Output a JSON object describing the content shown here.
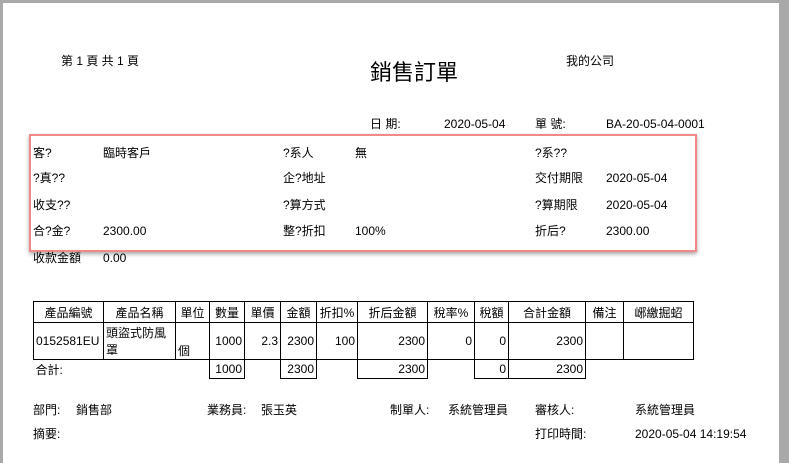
{
  "header": {
    "page_label": "第 1    頁 共 1    頁",
    "title": "銷售訂單",
    "company": "我的公司",
    "date_label": "日    期:",
    "date": "2020-05-04",
    "no_label": "單    號:",
    "no": "BA-20-05-04-0001"
  },
  "fields": [
    {
      "label": "客?",
      "value": "臨時客戶"
    },
    {
      "label": "?系人",
      "value": "無"
    },
    {
      "label": "?系??",
      "value": ""
    },
    {
      "label": "?真??",
      "value": ""
    },
    {
      "label": "企?地址",
      "value": ""
    },
    {
      "label": "交付期限",
      "value": "2020-05-04"
    },
    {
      "label": "收支??",
      "value": ""
    },
    {
      "label": "?算方式",
      "value": ""
    },
    {
      "label": "?算期限",
      "value": "2020-05-04"
    },
    {
      "label": "合?金?",
      "value": "2300.00"
    },
    {
      "label": "整?折扣",
      "value": "100%"
    },
    {
      "label": "折后?",
      "value": "2300.00"
    },
    {
      "label": "收款金額",
      "value": "0.00"
    }
  ],
  "table": {
    "headers": [
      "產品編號",
      "產品名稱",
      "單位",
      "數量",
      "單價",
      "金額",
      "折扣%",
      "折后金額",
      "稅率%",
      "稅額",
      "合計金額",
      "備注",
      "峫繳掘蛁"
    ],
    "rows": [
      [
        "0152581EU",
        "頭盜式防風罩",
        "個",
        "1000",
        "2.3",
        "2300",
        "100",
        "2300",
        "0",
        "0",
        "2300",
        "",
        ""
      ]
    ],
    "total_label": "合計:",
    "totals": {
      "qty": "1000",
      "amount": "2300",
      "after": "2300",
      "tax": "0",
      "sum": "2300"
    }
  },
  "footer": {
    "dept_label": "部門:",
    "dept": "銷售部",
    "sales_label": "業務員:",
    "sales": "張玉英",
    "maker_label": "制單人:",
    "maker": "系統管理員",
    "auditor_label": "審核人:",
    "auditor": "系統管理員",
    "memo_label": "摘要:",
    "print_label": "打印時間:",
    "print_time": "2020-05-04 14:19:54"
  }
}
